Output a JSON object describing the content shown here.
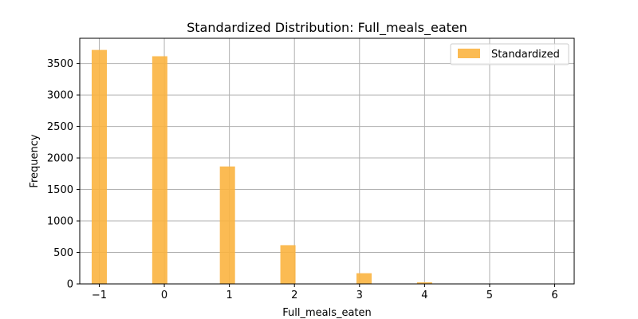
{
  "chart_data": {
    "type": "bar",
    "title": "Standardized Distribution: Full_meals_eaten",
    "xlabel": "Full_meals_eaten",
    "ylabel": "Frequency",
    "xlim": [
      -1.3,
      6.3
    ],
    "ylim": [
      0,
      3900
    ],
    "xticks": [
      -1,
      0,
      1,
      2,
      3,
      4,
      5,
      6
    ],
    "xtick_labels": [
      "−1",
      "0",
      "1",
      "2",
      "3",
      "4",
      "5",
      "6"
    ],
    "yticks": [
      0,
      500,
      1000,
      1500,
      2000,
      2500,
      3000,
      3500
    ],
    "grid": true,
    "legend_position": "top-right",
    "series": [
      {
        "name": "Standardized",
        "color": "#fbb440",
        "bar_width": 0.2333,
        "bins": [
          {
            "x": -1.0,
            "value": 3715
          },
          {
            "x": -0.07,
            "value": 3615
          },
          {
            "x": 0.97,
            "value": 1865
          },
          {
            "x": 1.9,
            "value": 615
          },
          {
            "x": 3.07,
            "value": 170
          },
          {
            "x": 4.0,
            "value": 25
          }
        ]
      }
    ]
  }
}
